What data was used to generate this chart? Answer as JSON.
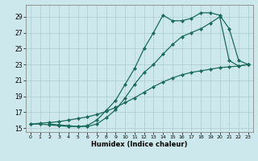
{
  "xlabel": "Humidex (Indice chaleur)",
  "bg_color": "#cce8ec",
  "grid_color": "#aacccc",
  "line_color": "#1a6b5a",
  "xlim": [
    -0.5,
    23.5
  ],
  "ylim": [
    14.5,
    30.5
  ],
  "yticks": [
    15,
    17,
    19,
    21,
    23,
    25,
    27,
    29
  ],
  "xticks": [
    0,
    1,
    2,
    3,
    4,
    5,
    6,
    7,
    8,
    9,
    10,
    11,
    12,
    13,
    14,
    15,
    16,
    17,
    18,
    19,
    20,
    21,
    22,
    23
  ],
  "line1_x": [
    0,
    1,
    2,
    3,
    4,
    5,
    6,
    7,
    8,
    9,
    10,
    11,
    12,
    13,
    14,
    15,
    16,
    17,
    18,
    19,
    20,
    21,
    22,
    23
  ],
  "line1_y": [
    15.5,
    15.6,
    15.7,
    15.8,
    16.0,
    16.2,
    16.4,
    16.7,
    17.1,
    17.6,
    18.2,
    18.8,
    19.5,
    20.2,
    20.8,
    21.3,
    21.7,
    22.0,
    22.2,
    22.4,
    22.6,
    22.7,
    22.8,
    23.0
  ],
  "line2_x": [
    0,
    1,
    2,
    3,
    4,
    5,
    6,
    7,
    8,
    9,
    10,
    11,
    12,
    13,
    14,
    15,
    16,
    17,
    18,
    19,
    20,
    21,
    22,
    23
  ],
  "line2_y": [
    15.5,
    15.5,
    15.4,
    15.3,
    15.2,
    15.2,
    15.2,
    15.5,
    16.3,
    17.3,
    18.8,
    20.5,
    22.0,
    23.0,
    24.3,
    25.5,
    26.5,
    27.0,
    27.5,
    28.2,
    29.0,
    23.5,
    22.8,
    23.0
  ],
  "line3_x": [
    2,
    3,
    4,
    5,
    6,
    7,
    8,
    9,
    10,
    11,
    12,
    13,
    14,
    15,
    16,
    17,
    18,
    19,
    20,
    21,
    22,
    23
  ],
  "line3_y": [
    15.5,
    15.4,
    15.3,
    15.2,
    15.3,
    16.0,
    17.2,
    18.5,
    20.5,
    22.5,
    25.0,
    27.0,
    29.2,
    28.5,
    28.5,
    28.8,
    29.5,
    29.5,
    29.2,
    27.5,
    23.5,
    23.0
  ]
}
